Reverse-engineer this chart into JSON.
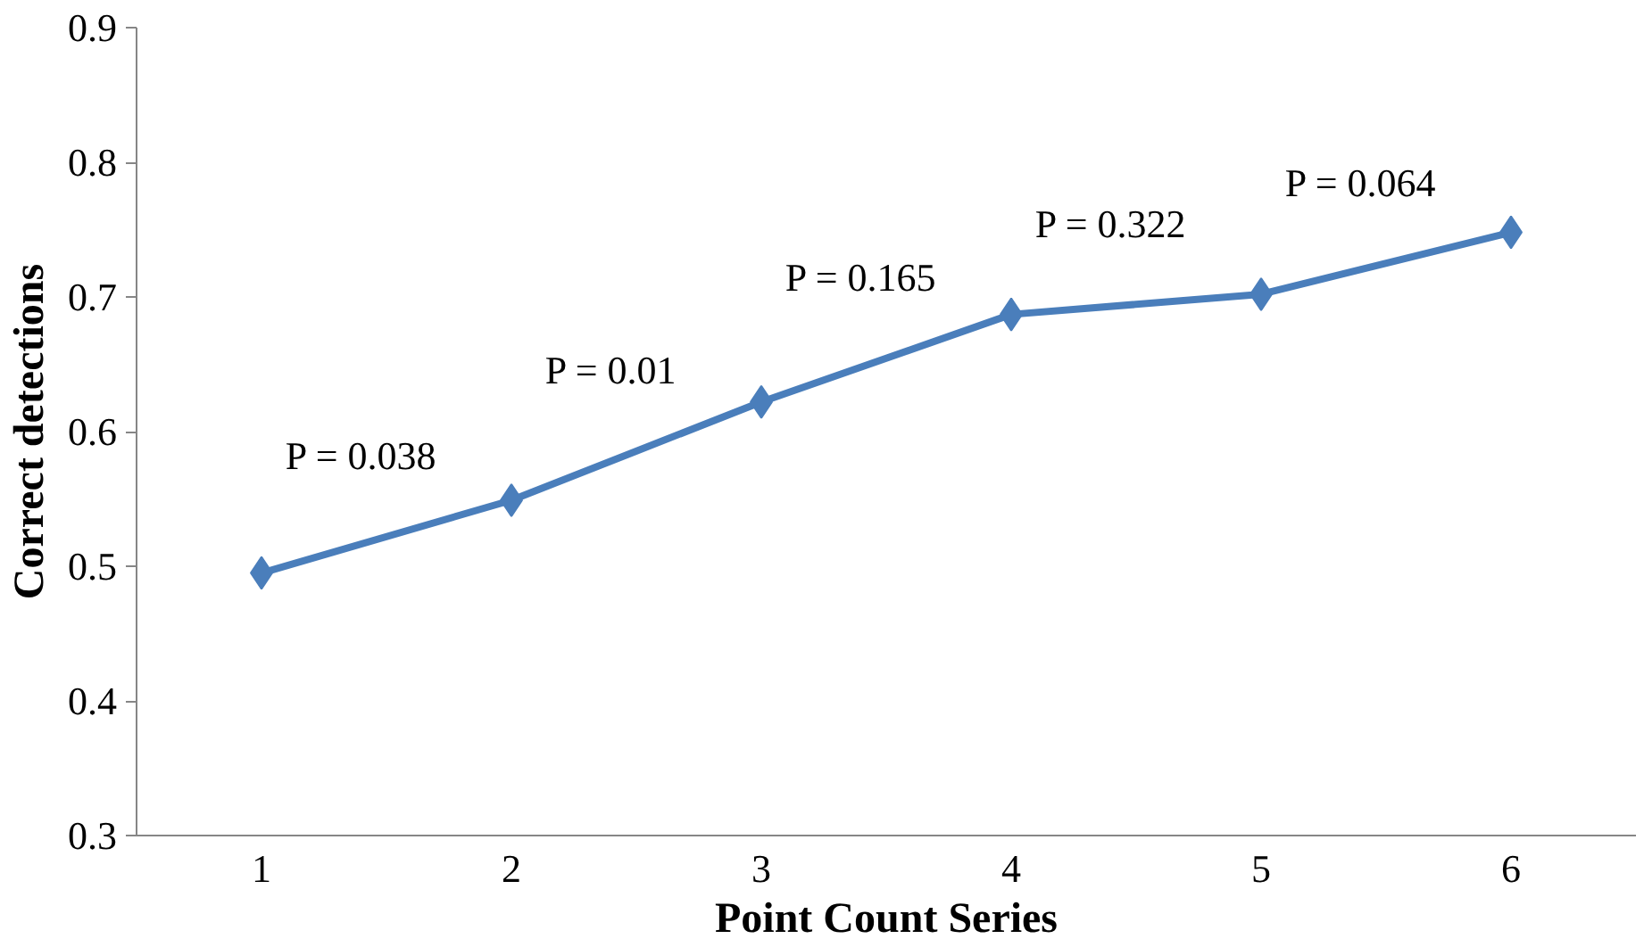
{
  "chart_data": {
    "type": "line",
    "xlabel": "Point Count Series",
    "ylabel": "Correct detections",
    "categories": [
      "1",
      "2",
      "3",
      "4",
      "5",
      "6"
    ],
    "series": [
      {
        "color": "#4a7ebb",
        "values": [
          0.495,
          0.549,
          0.622,
          0.687,
          0.702,
          0.748
        ]
      }
    ],
    "ylim": [
      0.3,
      0.9
    ],
    "yticks": [
      0.3,
      0.4,
      0.5,
      0.6,
      0.7,
      0.8,
      0.9
    ],
    "annotations": [
      "P = 0.038",
      "P = 0.01",
      "P = 0.165",
      "P = 0.322",
      "P = 0.064"
    ],
    "marker": "diamond",
    "line_style": "solid",
    "grid": false
  }
}
